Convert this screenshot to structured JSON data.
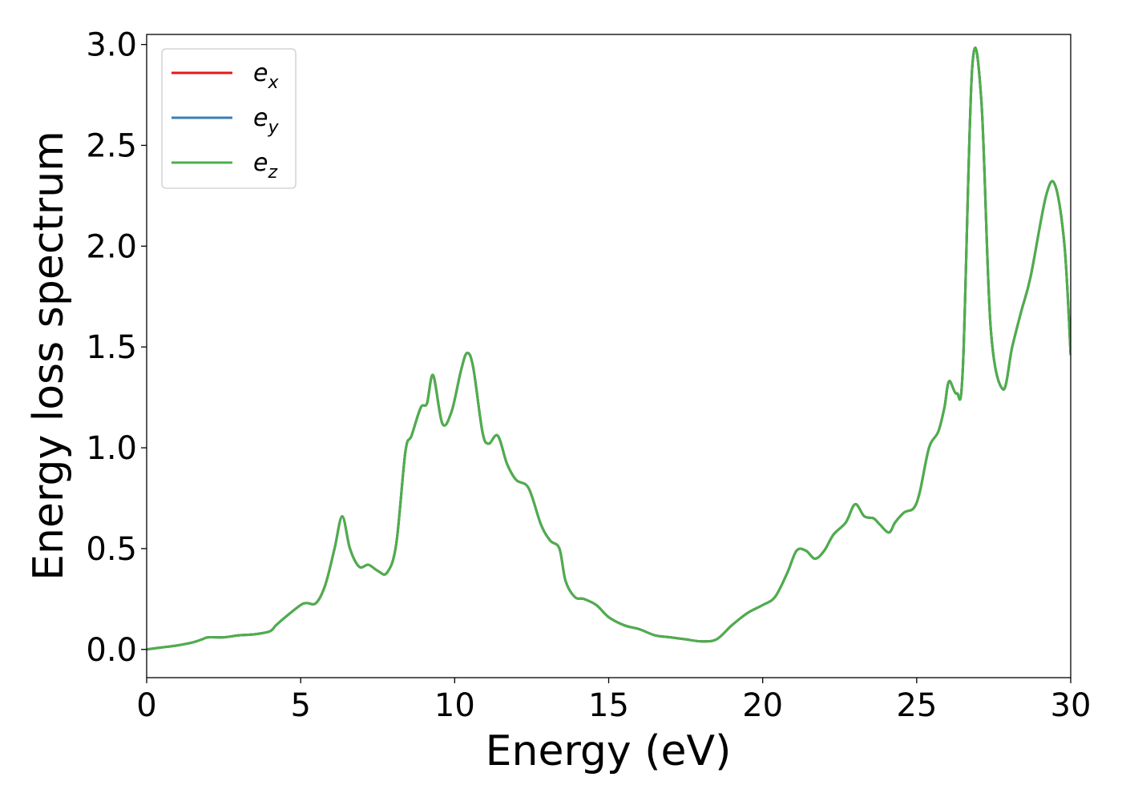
{
  "chart_data": {
    "type": "line",
    "xlabel": "Energy (eV)",
    "ylabel": "Energy loss spectrum",
    "xlim": [
      0,
      30
    ],
    "ylim": [
      -0.14,
      3.05
    ],
    "xticks": [
      0,
      5,
      10,
      15,
      20,
      25,
      30
    ],
    "yticks": [
      0.0,
      0.5,
      1.0,
      1.5,
      2.0,
      2.5,
      3.0
    ],
    "xtick_labels": [
      "0",
      "5",
      "10",
      "15",
      "20",
      "25",
      "30"
    ],
    "ytick_labels": [
      "0.0",
      "0.5",
      "1.0",
      "1.5",
      "2.0",
      "2.5",
      "3.0"
    ],
    "grid": false,
    "legend_position": "top-left",
    "x": [
      0,
      0.5,
      1,
      1.5,
      1.8,
      2,
      2.5,
      3,
      3.5,
      4,
      4.2,
      4.5,
      5,
      5.2,
      5.5,
      5.8,
      6.1,
      6.35,
      6.6,
      6.9,
      7.2,
      7.5,
      7.8,
      8.1,
      8.4,
      8.6,
      8.9,
      9.1,
      9.3,
      9.6,
      9.9,
      10.2,
      10.4,
      10.6,
      10.9,
      11.1,
      11.4,
      11.7,
      12,
      12.4,
      12.8,
      13.1,
      13.4,
      13.6,
      13.9,
      14.2,
      14.6,
      15,
      15.5,
      16,
      16.5,
      17,
      17.5,
      18,
      18.5,
      19,
      19.5,
      20,
      20.4,
      20.8,
      21.1,
      21.4,
      21.7,
      22,
      22.3,
      22.7,
      23,
      23.3,
      23.6,
      23.8,
      24.1,
      24.3,
      24.6,
      24.9,
      25.1,
      25.4,
      25.7,
      25.9,
      26.05,
      26.3,
      26.5,
      26.8,
      27.1,
      27.4,
      27.8,
      28.1,
      28.4,
      28.7,
      29.2,
      29.5,
      29.8,
      30
    ],
    "series": [
      {
        "name": "e_x",
        "label_main": "e",
        "label_sub": "x",
        "color": "#e41a1c",
        "values": [
          0.0,
          0.01,
          0.02,
          0.035,
          0.05,
          0.06,
          0.06,
          0.07,
          0.075,
          0.09,
          0.12,
          0.16,
          0.22,
          0.23,
          0.23,
          0.32,
          0.5,
          0.66,
          0.5,
          0.41,
          0.42,
          0.39,
          0.38,
          0.52,
          0.98,
          1.06,
          1.2,
          1.22,
          1.36,
          1.12,
          1.18,
          1.38,
          1.47,
          1.4,
          1.08,
          1.02,
          1.06,
          0.92,
          0.84,
          0.8,
          0.62,
          0.54,
          0.5,
          0.34,
          0.26,
          0.25,
          0.22,
          0.16,
          0.12,
          0.1,
          0.07,
          0.06,
          0.05,
          0.04,
          0.05,
          0.12,
          0.18,
          0.22,
          0.26,
          0.38,
          0.49,
          0.49,
          0.45,
          0.49,
          0.57,
          0.63,
          0.72,
          0.66,
          0.65,
          0.62,
          0.58,
          0.63,
          0.68,
          0.7,
          0.78,
          1.0,
          1.08,
          1.2,
          1.33,
          1.27,
          1.4,
          2.88,
          2.72,
          1.6,
          1.29,
          1.5,
          1.68,
          1.85,
          2.25,
          2.3,
          2.0,
          1.46
        ]
      },
      {
        "name": "e_y",
        "label_main": "e",
        "label_sub": "y",
        "color": "#377eb8",
        "values": [
          0.0,
          0.01,
          0.02,
          0.035,
          0.05,
          0.06,
          0.06,
          0.07,
          0.075,
          0.09,
          0.12,
          0.16,
          0.22,
          0.23,
          0.23,
          0.32,
          0.5,
          0.66,
          0.5,
          0.41,
          0.42,
          0.39,
          0.38,
          0.52,
          0.98,
          1.06,
          1.2,
          1.22,
          1.36,
          1.12,
          1.18,
          1.38,
          1.47,
          1.4,
          1.08,
          1.02,
          1.06,
          0.92,
          0.84,
          0.8,
          0.62,
          0.54,
          0.5,
          0.34,
          0.26,
          0.25,
          0.22,
          0.16,
          0.12,
          0.1,
          0.07,
          0.06,
          0.05,
          0.04,
          0.05,
          0.12,
          0.18,
          0.22,
          0.26,
          0.38,
          0.49,
          0.49,
          0.45,
          0.49,
          0.57,
          0.63,
          0.72,
          0.66,
          0.65,
          0.62,
          0.58,
          0.63,
          0.68,
          0.7,
          0.78,
          1.0,
          1.08,
          1.2,
          1.33,
          1.27,
          1.4,
          2.88,
          2.72,
          1.6,
          1.29,
          1.5,
          1.68,
          1.85,
          2.25,
          2.3,
          2.0,
          1.46
        ]
      },
      {
        "name": "e_z",
        "label_main": "e",
        "label_sub": "z",
        "color": "#4daf4a",
        "values": [
          0.0,
          0.01,
          0.02,
          0.035,
          0.05,
          0.06,
          0.06,
          0.07,
          0.075,
          0.09,
          0.12,
          0.16,
          0.22,
          0.23,
          0.23,
          0.32,
          0.5,
          0.66,
          0.5,
          0.41,
          0.42,
          0.39,
          0.38,
          0.52,
          0.98,
          1.06,
          1.2,
          1.22,
          1.36,
          1.12,
          1.18,
          1.38,
          1.47,
          1.4,
          1.08,
          1.02,
          1.06,
          0.92,
          0.84,
          0.8,
          0.62,
          0.54,
          0.5,
          0.34,
          0.26,
          0.25,
          0.22,
          0.16,
          0.12,
          0.1,
          0.07,
          0.06,
          0.05,
          0.04,
          0.05,
          0.12,
          0.18,
          0.22,
          0.26,
          0.38,
          0.49,
          0.49,
          0.45,
          0.49,
          0.57,
          0.63,
          0.72,
          0.66,
          0.65,
          0.62,
          0.58,
          0.63,
          0.68,
          0.7,
          0.78,
          1.0,
          1.08,
          1.2,
          1.33,
          1.27,
          1.4,
          2.88,
          2.72,
          1.6,
          1.29,
          1.5,
          1.68,
          1.85,
          2.25,
          2.3,
          2.0,
          1.46
        ]
      }
    ]
  }
}
